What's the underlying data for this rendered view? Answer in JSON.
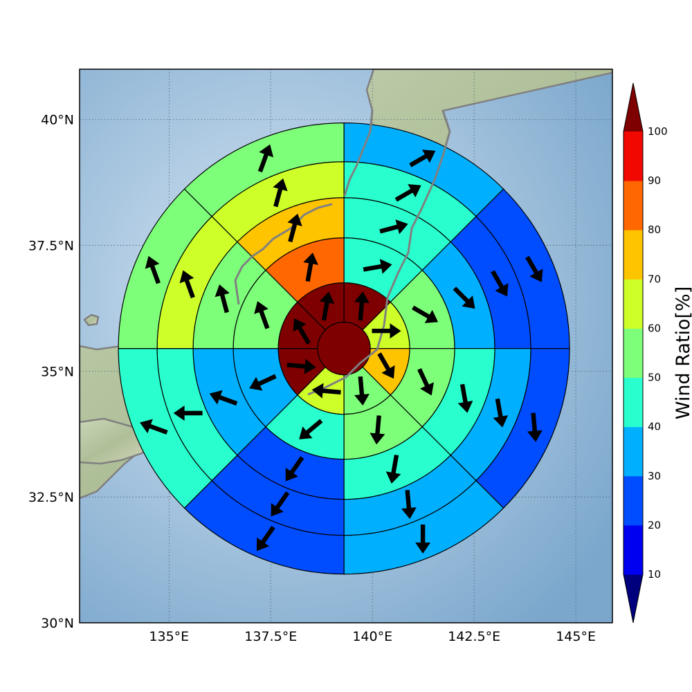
{
  "map": {
    "lon_range": [
      132.8,
      145.9
    ],
    "lat_range": [
      30.0,
      41.0
    ],
    "lon_ticks": [
      {
        "value": 135.0,
        "label": "135°E"
      },
      {
        "value": 137.5,
        "label": "137.5°E"
      },
      {
        "value": 140.0,
        "label": "140°E"
      },
      {
        "value": 142.5,
        "label": "142.5°E"
      },
      {
        "value": 145.0,
        "label": "145°E"
      }
    ],
    "lat_ticks": [
      {
        "value": 30.0,
        "label": "30°N"
      },
      {
        "value": 32.5,
        "label": "32.5°N"
      },
      {
        "value": 35.0,
        "label": "35°N"
      },
      {
        "value": 37.5,
        "label": "37.5°N"
      },
      {
        "value": 40.0,
        "label": "40°N"
      }
    ],
    "gridlines": true,
    "coastline_color": "#808080"
  },
  "colorbar": {
    "title": "Wind Ratio[%]",
    "ticks": [
      "10",
      "20",
      "30",
      "40",
      "50",
      "60",
      "70",
      "80",
      "90",
      "100"
    ],
    "bins": [
      {
        "range": [
          10,
          20
        ],
        "color": "#0000f0"
      },
      {
        "range": [
          20,
          30
        ],
        "color": "#004cff"
      },
      {
        "range": [
          30,
          40
        ],
        "color": "#00b0ff"
      },
      {
        "range": [
          40,
          50
        ],
        "color": "#29ffce"
      },
      {
        "range": [
          50,
          60
        ],
        "color": "#7dff7a"
      },
      {
        "range": [
          60,
          70
        ],
        "color": "#ceff29"
      },
      {
        "range": [
          70,
          80
        ],
        "color": "#ffc400"
      },
      {
        "range": [
          80,
          90
        ],
        "color": "#ff6800"
      },
      {
        "range": [
          90,
          100
        ],
        "color": "#f10800"
      }
    ],
    "under_color": "#00007f",
    "over_color": "#7f0000",
    "extend": "both"
  },
  "wind_rings": {
    "center": {
      "lon": 139.3,
      "lat": 35.45
    },
    "sector_count": 8,
    "sector_order": "clockwise from north",
    "center_cell": {
      "value": 105
    },
    "rings": [
      {
        "name": "ring-1",
        "values": [
          105,
          65,
          75,
          55,
          65,
          105,
          105,
          105
        ],
        "arrow_angles": [
          5,
          90,
          150,
          175,
          275,
          95,
          330,
          10
        ]
      },
      {
        "name": "ring-2",
        "values": [
          45,
          55,
          55,
          55,
          45,
          35,
          55,
          85
        ],
        "arrow_angles": [
          80,
          120,
          155,
          185,
          230,
          245,
          340,
          10
        ]
      },
      {
        "name": "ring-3",
        "values": [
          45,
          35,
          45,
          45,
          25,
          35,
          55,
          75
        ],
        "arrow_angles": [
          75,
          135,
          170,
          190,
          215,
          290,
          345,
          15
        ]
      },
      {
        "name": "ring-4",
        "values": [
          45,
          25,
          35,
          35,
          25,
          45,
          65,
          65
        ],
        "arrow_angles": [
          60,
          150,
          170,
          175,
          215,
          270,
          340,
          15
        ]
      },
      {
        "name": "ring-5",
        "values": [
          35,
          25,
          25,
          35,
          25,
          45,
          55,
          55
        ],
        "arrow_angles": [
          60,
          150,
          175,
          180,
          215,
          290,
          340,
          20
        ]
      },
      {
        "name": "ring-6",
        "values": [
          35,
          15,
          25,
          25,
          15,
          25,
          55,
          55
        ],
        "arrow_angles": [
          65,
          150,
          180,
          180,
          210,
          290,
          345,
          20
        ]
      }
    ]
  }
}
